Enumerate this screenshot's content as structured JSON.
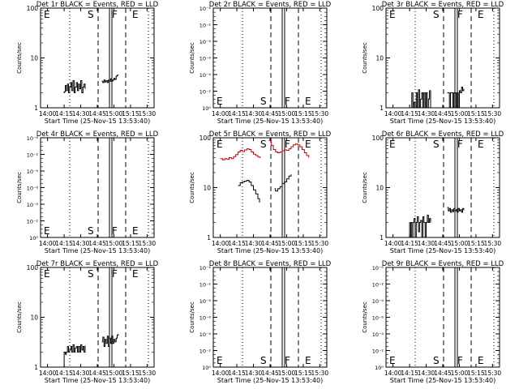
{
  "figure": {
    "background": "#ffffff",
    "colors": {
      "events": "#000000",
      "lld": "#cc0000",
      "axes": "#000000"
    }
  },
  "chart_data": [
    {
      "title": "Det 1r BLACK = Events, RED = LLD",
      "type": "line",
      "scale": "log",
      "ylim": [
        1,
        100
      ],
      "ylabel": "Counts/sec",
      "xlabel": "Start Time (25-Nov-15 13:53:40)",
      "xticks": [
        "14:00",
        "14:15",
        "14:30",
        "14:45",
        "15:00",
        "15:15",
        "15:30"
      ],
      "yticks": [
        "1",
        "10",
        "100"
      ],
      "markers": {
        "E1": "E",
        "S": "S",
        "F": "F",
        "E2": "E"
      },
      "series": [
        {
          "color": "#000000",
          "x": [
            14.6,
            15,
            16,
            17,
            18,
            19,
            20,
            21,
            22,
            23,
            24,
            25,
            26,
            27,
            28,
            29,
            30,
            31,
            32,
            33,
            34
          ],
          "y": [
            2.0,
            2.1,
            2.8,
            2.2,
            3.0,
            2.0,
            2.6,
            3.2,
            2.2,
            3.5,
            2.0,
            2.6,
            3.2,
            2.2,
            3.0,
            2.4,
            3.5,
            2.0,
            2.6,
            3.0,
            2.4
          ]
        },
        {
          "color": "#000000",
          "x": [
            49,
            50,
            51,
            52,
            53,
            54,
            55,
            56,
            57,
            58,
            59,
            60,
            61,
            62,
            63,
            64
          ],
          "y": [
            3.4,
            3.2,
            3.6,
            3.3,
            3.5,
            3.2,
            3.6,
            3.4,
            3.8,
            3.4,
            3.6,
            3.9,
            3.7,
            4.3,
            4.5,
            4.6
          ]
        }
      ]
    },
    {
      "title": "Det 2r BLACK = Events, RED = LLD",
      "type": "line",
      "scale": "log",
      "ylim": [
        1e-06,
        1000000.0
      ],
      "ylabel": "Counts/sec",
      "xlabel": "Start Time (25-Nov-15 13:53:40)",
      "xticks": [
        "14:00",
        "14:15",
        "14:30",
        "14:45",
        "15:00",
        "15:15",
        "15:30"
      ],
      "yticks": [
        "10⁰",
        "10⁻²",
        "10⁻⁴",
        "10⁻⁶",
        "10⁻⁴",
        "10⁻²",
        "10⁻⁶"
      ],
      "markers": {
        "E1": "E",
        "S": "S",
        "F": "F",
        "E2": "E"
      },
      "series": []
    },
    {
      "title": "Det 3r BLACK = Events, RED = LLD",
      "type": "line",
      "scale": "log",
      "ylim": [
        1,
        100
      ],
      "ylabel": "Counts/sec",
      "xlabel": "Start Time (25-Nov-15 13:53:40)",
      "xticks": [
        "14:00",
        "14:15",
        "14:30",
        "14:45",
        "15:00",
        "15:15",
        "15:30"
      ],
      "yticks": [
        "1",
        "10",
        "100"
      ],
      "markers": {
        "E1": "E",
        "S": "S",
        "F": "F",
        "E2": "E"
      },
      "series": [
        {
          "color": "#000000",
          "x": [
            14.6,
            16,
            17,
            18,
            19,
            20,
            21,
            22,
            23,
            24,
            25,
            26,
            27,
            28,
            29,
            30,
            31,
            32,
            33,
            34
          ],
          "y": [
            1.0,
            1.0,
            2.0,
            1.0,
            1.3,
            1.0,
            2.0,
            1.0,
            2.3,
            1.0,
            1.5,
            2.0,
            1.0,
            2.0,
            1.0,
            2.0,
            1.0,
            1.5,
            2.2,
            1.0
          ]
        },
        {
          "color": "#000000",
          "x": [
            49,
            50,
            51,
            52,
            53,
            54,
            55,
            56,
            57,
            58,
            59,
            60,
            61,
            62,
            63,
            64
          ],
          "y": [
            2.0,
            2.0,
            1.0,
            2.0,
            2.0,
            1.0,
            2.0,
            2.0,
            1.0,
            2.0,
            1.0,
            2.2,
            2.0,
            2.6,
            2.2,
            2.4
          ]
        }
      ]
    },
    {
      "title": "Det 4r BLACK = Events, RED = LLD",
      "type": "line",
      "scale": "log",
      "ylim": [
        1e-06,
        1000000.0
      ],
      "ylabel": "Counts/sec",
      "xlabel": "Start Time (25-Nov-15 13:53:40)",
      "xticks": [
        "14:00",
        "14:15",
        "14:30",
        "14:45",
        "15:00",
        "15:15",
        "15:30"
      ],
      "yticks": [
        "10⁰",
        "10⁻²",
        "10⁻⁴",
        "10⁻⁶",
        "10⁻⁴",
        "10⁻²",
        "10⁻⁶"
      ],
      "markers": {
        "E1": "E",
        "S": "S",
        "F": "F",
        "E2": "E"
      },
      "series": []
    },
    {
      "title": "Det 5r BLACK = Events, RED = LLD",
      "type": "line",
      "scale": "log",
      "ylim": [
        1,
        100
      ],
      "ylabel": "Counts/sec",
      "xlabel": "Start Time (25-Nov-15 13:53:40)",
      "xticks": [
        "14:00",
        "14:15",
        "14:30",
        "14:45",
        "15:00",
        "15:15",
        "15:30"
      ],
      "yticks": [
        "1",
        "10",
        "100"
      ],
      "markers": {
        "E1": "E",
        "S": "S",
        "F": "F",
        "E2": "E"
      },
      "series": [
        {
          "color": "#cc0000",
          "x": [
            0,
            2,
            4,
            6,
            8,
            10,
            12,
            14,
            16,
            18,
            20,
            22,
            24,
            26,
            28,
            30,
            32,
            34,
            36
          ],
          "y": [
            38,
            36,
            38,
            37,
            40,
            38,
            42,
            46,
            52,
            56,
            53,
            57,
            60,
            58,
            52,
            47,
            44,
            41,
            39
          ]
        },
        {
          "color": "#cc0000",
          "x": [
            44,
            46,
            48,
            50,
            52,
            54,
            56,
            58,
            60,
            62,
            64,
            66,
            68,
            70,
            72,
            74,
            76,
            78,
            80
          ],
          "y": [
            88,
            70,
            58,
            52,
            50,
            52,
            55,
            57,
            56,
            60,
            66,
            72,
            75,
            72,
            66,
            58,
            50,
            44,
            40
          ]
        },
        {
          "color": "#000000",
          "x": [
            16,
            18,
            20,
            22,
            24,
            26,
            28,
            30,
            32,
            34,
            35.5
          ],
          "y": [
            11,
            12.5,
            13,
            13.5,
            14,
            13,
            11,
            9,
            7.5,
            6,
            5
          ]
        },
        {
          "color": "#000000",
          "x": [
            49,
            50,
            52,
            54,
            56,
            58,
            60,
            62,
            64
          ],
          "y": [
            9.5,
            8.5,
            9.5,
            10.5,
            12,
            13,
            15,
            17,
            18.5
          ]
        }
      ]
    },
    {
      "title": "Det 6r BLACK = Events, RED = LLD",
      "type": "line",
      "scale": "log",
      "ylim": [
        1,
        100
      ],
      "ylabel": "Counts/sec",
      "xlabel": "Start Time (25-Nov-15 13:53:40)",
      "xticks": [
        "14:00",
        "14:15",
        "14:30",
        "14:45",
        "15:00",
        "15:15",
        "15:30"
      ],
      "yticks": [
        "1",
        "10",
        "100"
      ],
      "markers": {
        "E1": "E",
        "S": "S",
        "F": "F",
        "E2": "E"
      },
      "series": [
        {
          "color": "#000000",
          "x": [
            14.6,
            15,
            16,
            17,
            18,
            19,
            20,
            21,
            22,
            23,
            24,
            25,
            26,
            27,
            28,
            29,
            30,
            31,
            32,
            33,
            34
          ],
          "y": [
            2.0,
            1.0,
            2.0,
            1.0,
            2.0,
            2.4,
            1.0,
            2.0,
            2.6,
            1.3,
            2.0,
            2.2,
            1.0,
            2.6,
            2.0,
            1.0,
            2.0,
            2.8,
            2.0,
            2.4,
            2.0
          ]
        },
        {
          "color": "#000000",
          "x": [
            49,
            50,
            51,
            52,
            53,
            54,
            55,
            56,
            57,
            58,
            59,
            60,
            61,
            62,
            63,
            64
          ],
          "y": [
            4.0,
            3.4,
            3.8,
            3.2,
            3.6,
            3.3,
            3.8,
            3.4,
            3.6,
            3.2,
            3.8,
            3.4,
            3.6,
            3.2,
            3.8,
            3.5
          ]
        }
      ]
    },
    {
      "title": "Det 7r BLACK = Events, RED = LLD",
      "type": "line",
      "scale": "log",
      "ylim": [
        1,
        100
      ],
      "ylabel": "Counts/sec",
      "xlabel": "Start Time (25-Nov-15 13:53:40)",
      "xticks": [
        "14:00",
        "14:15",
        "14:30",
        "14:45",
        "15:00",
        "15:15",
        "15:30"
      ],
      "yticks": [
        "1",
        "10",
        "100"
      ],
      "markers": {
        "E1": "E",
        "S": "S",
        "F": "F",
        "E2": "E"
      },
      "series": [
        {
          "color": "#000000",
          "x": [
            14.6,
            15,
            16,
            17,
            18,
            19,
            20,
            21,
            22,
            23,
            24,
            25,
            26,
            27,
            28,
            29,
            30,
            31,
            32,
            33,
            34
          ],
          "y": [
            1.0,
            2.0,
            1.8,
            2.0,
            2.6,
            2.0,
            2.2,
            2.6,
            2.0,
            2.8,
            2.0,
            2.4,
            2.6,
            2.0,
            2.6,
            2.0,
            2.8,
            2.2,
            2.6,
            2.0,
            2.7
          ]
        },
        {
          "color": "#000000",
          "x": [
            49,
            50,
            51,
            52,
            53,
            54,
            55,
            56,
            57,
            58,
            59,
            60,
            61,
            62,
            63,
            64
          ],
          "y": [
            3.2,
            4.0,
            2.6,
            3.6,
            3.0,
            4.2,
            2.6,
            3.8,
            3.0,
            4.2,
            3.0,
            3.6,
            3.2,
            3.8,
            4.4,
            4.6
          ]
        }
      ]
    },
    {
      "title": "Det 8r BLACK = Events, RED = LLD",
      "type": "line",
      "scale": "log",
      "ylim": [
        1e-06,
        1000000.0
      ],
      "ylabel": "Counts/sec",
      "xlabel": "Start Time (25-Nov-15 13:53:40)",
      "xticks": [
        "14:00",
        "14:15",
        "14:30",
        "14:45",
        "15:00",
        "15:15",
        "15:30"
      ],
      "yticks": [
        "10⁰",
        "10⁻²",
        "10⁻⁴",
        "10⁻⁶",
        "10⁻⁴",
        "10⁻²",
        "10⁻⁶"
      ],
      "markers": {
        "E1": "E",
        "S": "S",
        "F": "F",
        "E2": "E"
      },
      "series": []
    },
    {
      "title": "Det 9r BLACK = Events, RED = LLD",
      "type": "line",
      "scale": "log",
      "ylim": [
        1e-06,
        1000000.0
      ],
      "ylabel": "Counts/sec",
      "xlabel": "Start Time (25-Nov-15 13:53:40)",
      "xticks": [
        "14:00",
        "14:15",
        "14:30",
        "14:45",
        "15:00",
        "15:15",
        "15:30"
      ],
      "yticks": [
        "10⁰",
        "10⁻²",
        "10⁻⁴",
        "10⁻⁶",
        "10⁻⁴",
        "10⁻²",
        "10⁻⁶"
      ],
      "markers": {
        "E1": "E",
        "S": "S",
        "F": "F",
        "E2": "E"
      },
      "series": []
    }
  ]
}
